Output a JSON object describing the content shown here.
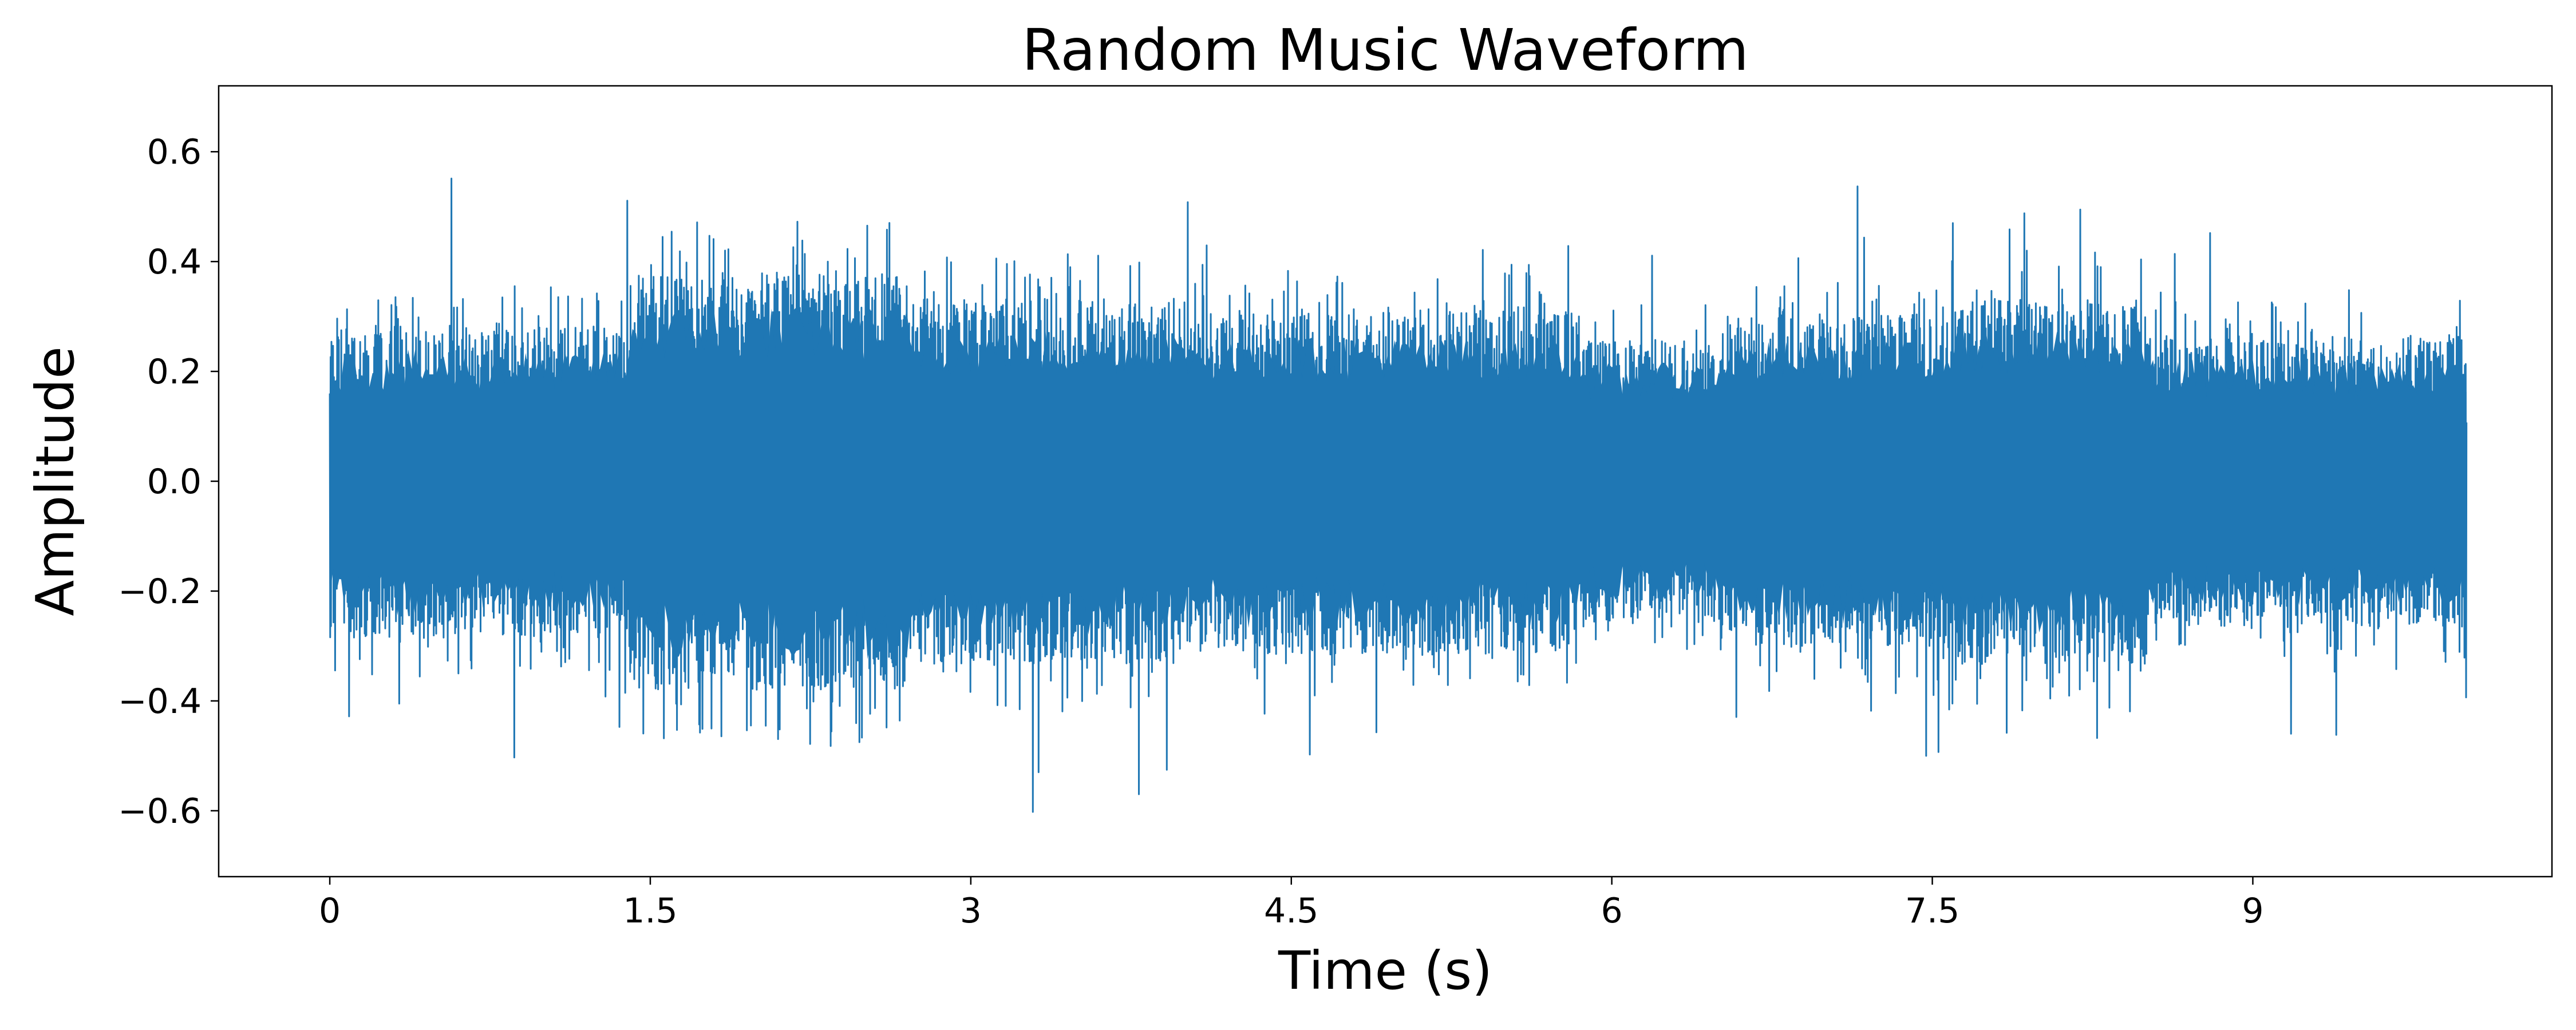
{
  "chart_data": {
    "type": "line",
    "title": "Random Music Waveform",
    "xlabel": "Time (s)",
    "ylabel": "Amplitude",
    "xlim": [
      -0.52,
      10.4
    ],
    "ylim": [
      -0.72,
      0.72
    ],
    "x_ticks": [
      0,
      1.5,
      3,
      4.5,
      6,
      7.5,
      9
    ],
    "x_tick_labels": [
      "0",
      "1.5",
      "3",
      "4.5",
      "6",
      "7.5",
      "9"
    ],
    "y_ticks": [
      -0.6,
      -0.4,
      -0.2,
      0.0,
      0.2,
      0.4,
      0.6
    ],
    "y_tick_labels": [
      "−0.6",
      "−0.4",
      "−0.2",
      "0.0",
      "0.2",
      "0.4",
      "0.6"
    ],
    "grid": false,
    "legend": "none",
    "series": [
      {
        "color": "#1f77b4",
        "envelope": [
          {
            "start": 0.0,
            "end": 1.4,
            "peak": 0.56,
            "typical": 0.3
          },
          {
            "start": 1.4,
            "end": 2.7,
            "peak": 0.64,
            "typical": 0.4
          },
          {
            "start": 2.7,
            "end": 3.95,
            "peak": 0.66,
            "typical": 0.35
          },
          {
            "start": 3.95,
            "end": 5.85,
            "peak": 0.52,
            "typical": 0.33
          },
          {
            "start": 5.85,
            "end": 6.5,
            "peak": 0.46,
            "typical": 0.27
          },
          {
            "start": 6.5,
            "end": 7.5,
            "peak": 0.54,
            "typical": 0.32
          },
          {
            "start": 7.5,
            "end": 8.5,
            "peak": 0.55,
            "typical": 0.35
          },
          {
            "start": 8.5,
            "end": 10.0,
            "peak": 0.49,
            "typical": 0.28
          }
        ]
      }
    ]
  }
}
